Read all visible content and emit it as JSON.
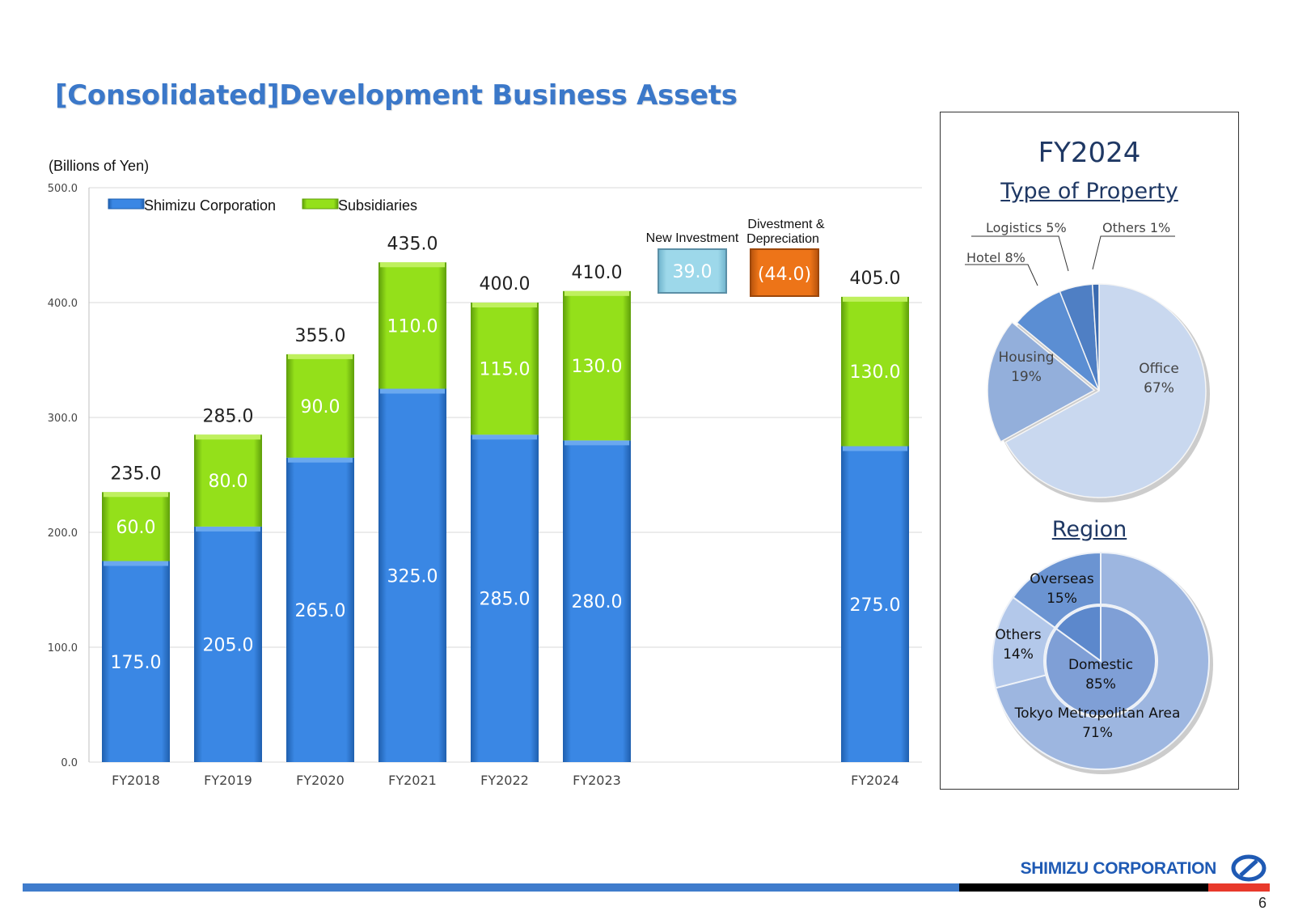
{
  "page": {
    "title": "[Consolidated]Development Business Assets",
    "unit": "(Billions of Yen)",
    "page_number": "6",
    "brand": "SHIMIZU CORPORATION"
  },
  "colors": {
    "title": "#3b78c9",
    "shimizu": "#3a87e4",
    "subsidiaries": "#94e01a",
    "new_investment": "#9dd8ea",
    "divestment": "#ed7418",
    "pie_office": "#c9d8ef",
    "pie_housing": "#93afdb",
    "pie_hotel": "#5b8ed3",
    "pie_logistics": "#4f7fc4",
    "pie_others": "#3a6ab0",
    "footer_blue": "#3f7ccc",
    "footer_black": "#000000",
    "footer_red": "#e8392b"
  },
  "chart_data": [
    {
      "type": "bar",
      "stacked": true,
      "title": "",
      "ylabel": "(Billions of Yen)",
      "ylim": [
        0,
        500
      ],
      "yticks": [
        "0.0",
        "100.0",
        "200.0",
        "300.0",
        "400.0",
        "500.0"
      ],
      "categories": [
        "FY2018",
        "FY2019",
        "FY2020",
        "FY2021",
        "FY2022",
        "FY2023",
        "FY2024"
      ],
      "series": [
        {
          "name": "Shimizu Corporation",
          "values": [
            175.0,
            205.0,
            265.0,
            325.0,
            285.0,
            280.0,
            275.0
          ]
        },
        {
          "name": "Subsidiaries",
          "values": [
            60.0,
            80.0,
            90.0,
            110.0,
            115.0,
            130.0,
            130.0
          ]
        }
      ],
      "totals": [
        "235.0",
        "285.0",
        "355.0",
        "435.0",
        "400.0",
        "410.0",
        "405.0"
      ],
      "value_labels": {
        "shimizu": [
          "175.0",
          "205.0",
          "265.0",
          "325.0",
          "285.0",
          "280.0",
          "275.0"
        ],
        "subsidiaries": [
          "60.0",
          "80.0",
          "90.0",
          "110.0",
          "115.0",
          "130.0",
          "130.0"
        ]
      },
      "legend": [
        "Shimizu Corporation",
        "Subsidiaries"
      ],
      "legend_position": "top-left",
      "bridge": [
        {
          "label": "New Investment",
          "value": 39.0,
          "display": "39.0"
        },
        {
          "label_line1": "Divestment &",
          "label_line2": "Depreciation",
          "value": -44.0,
          "display": "(44.0)"
        }
      ]
    },
    {
      "type": "pie",
      "title": "Type of Property",
      "header": "FY2024",
      "slices": [
        {
          "name": "Office",
          "value": 67,
          "label": "67%"
        },
        {
          "name": "Housing",
          "value": 19,
          "label": "19%"
        },
        {
          "name": "Hotel",
          "value": 8,
          "label": "Hotel 8%"
        },
        {
          "name": "Logistics",
          "value": 5,
          "label": "Logistics 5%"
        },
        {
          "name": "Others",
          "value": 1,
          "label": "Others 1%"
        }
      ]
    },
    {
      "type": "pie",
      "variant": "nested-donut",
      "title": "Region",
      "inner": [
        {
          "name": "Domestic",
          "value": 85,
          "label": "85%"
        },
        {
          "name": "Overseas",
          "value": 15,
          "label": "15%"
        }
      ],
      "outer": [
        {
          "name": "Tokyo Metropolitan Area",
          "value": 71,
          "label": "71%"
        },
        {
          "name": "Others",
          "value": 14,
          "label": "14%"
        },
        {
          "name": "Overseas",
          "value": 15,
          "label": "15%"
        }
      ]
    }
  ]
}
